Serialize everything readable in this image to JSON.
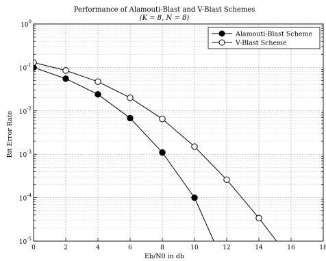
{
  "chart_data": {
    "type": "line",
    "title": "Performance of Alamouti-Blast and V-Blast Schemes",
    "subtitle": "(K = 8, N = 8)",
    "xlabel": "Eb/N0 in db",
    "ylabel": "Bit Error Rate",
    "xlim": [
      0,
      18
    ],
    "ylim": [
      1e-05,
      1
    ],
    "yscale": "log",
    "grid": true,
    "legend_position": "top-right",
    "x_ticks": [
      "0",
      "2",
      "4",
      "6",
      "8",
      "10",
      "12",
      "14",
      "16",
      "18"
    ],
    "y_ticks": [
      {
        "value": 1,
        "base": "10",
        "exp": "0"
      },
      {
        "value": 0.1,
        "base": "10",
        "exp": "-1"
      },
      {
        "value": 0.01,
        "base": "10",
        "exp": "-2"
      },
      {
        "value": 0.001,
        "base": "10",
        "exp": "-3"
      },
      {
        "value": 0.0001,
        "base": "10",
        "exp": "-4"
      },
      {
        "value": 1e-05,
        "base": "10",
        "exp": "-5"
      }
    ],
    "series": [
      {
        "name": "Alamouti-Blast Scheme",
        "marker": "filled-circle",
        "color": "#000000",
        "x": [
          0,
          2,
          4,
          6,
          8,
          10,
          11.2
        ],
        "y": [
          0.1,
          0.055,
          0.024,
          0.0068,
          0.0011,
          0.0001,
          1e-05
        ]
      },
      {
        "name": "V-Blast Scheme",
        "marker": "open-circle",
        "color": "#000000",
        "x": [
          0,
          2,
          4,
          6,
          8,
          10,
          12,
          14,
          15.1
        ],
        "y": [
          0.13,
          0.085,
          0.047,
          0.02,
          0.0065,
          0.0015,
          0.00026,
          3.4e-05,
          1e-05
        ]
      }
    ]
  }
}
